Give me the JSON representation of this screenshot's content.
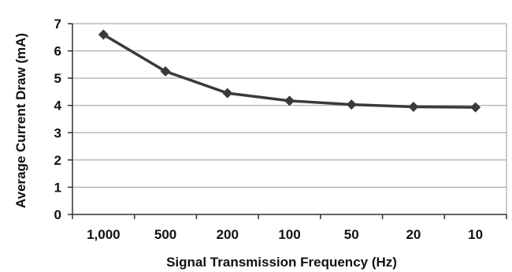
{
  "chart_data": {
    "type": "line",
    "categories": [
      "1,000",
      "500",
      "200",
      "100",
      "50",
      "20",
      "10"
    ],
    "series": [
      {
        "values": [
          6.6,
          5.25,
          4.45,
          4.17,
          4.03,
          3.95,
          3.93
        ],
        "color": "#3a3a3a",
        "marker": "diamond"
      }
    ],
    "xlabel": "Signal Transmission Frequency (Hz)",
    "ylabel": "Average Current Draw (mA)",
    "ylim": [
      0,
      7
    ],
    "yticks": [
      "0",
      "1",
      "2",
      "3",
      "4",
      "5",
      "6",
      "7"
    ],
    "grid": true,
    "legend": "none",
    "colors": {
      "grid": "#9a9a9a",
      "axis": "#333333",
      "plot_border": "#9a9a9a"
    }
  }
}
